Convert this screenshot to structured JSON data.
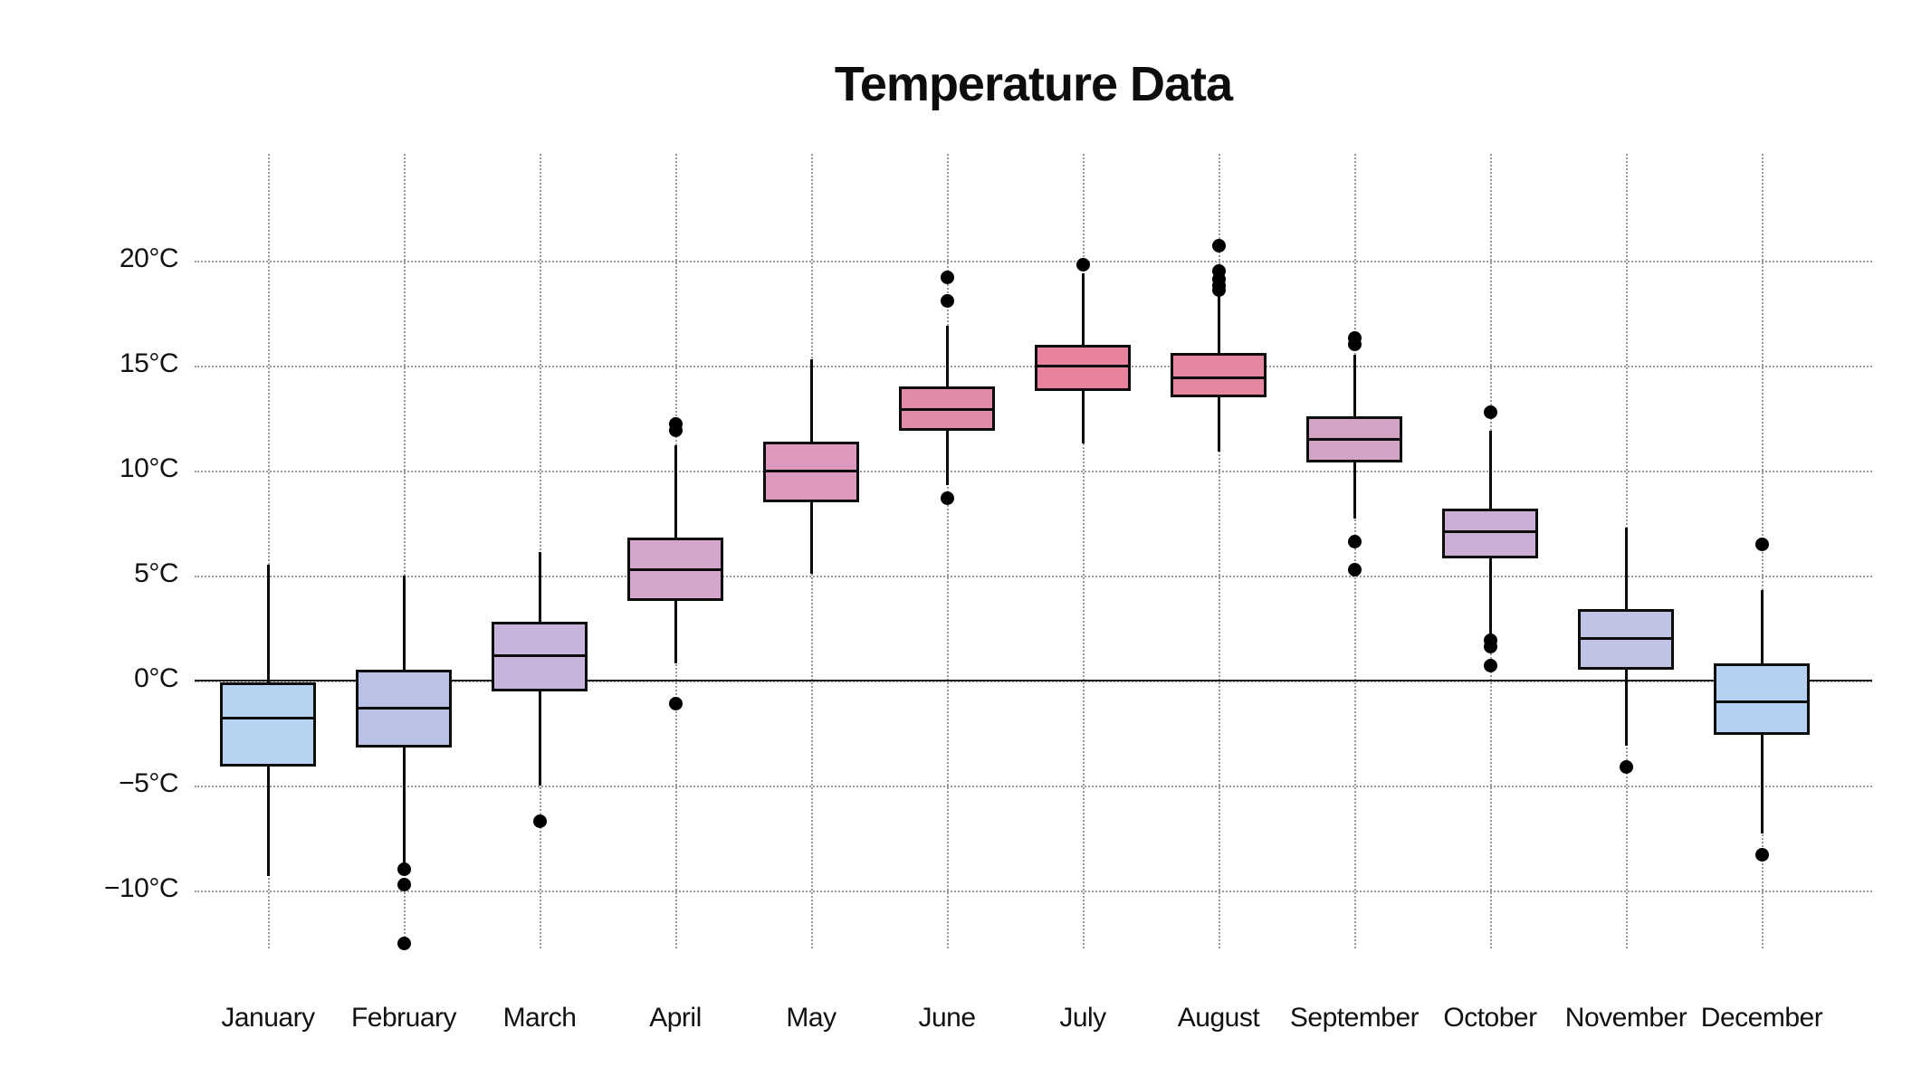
{
  "title": "Temperature Data",
  "chart_data": {
    "type": "boxplot",
    "title": "Temperature Data",
    "xlabel": "",
    "ylabel": "",
    "y_unit": "°C",
    "y_ticks": [
      20,
      15,
      10,
      5,
      0,
      -5,
      -10
    ],
    "y_tick_labels": [
      "20°C",
      "15°C",
      "10°C",
      "5°C",
      "0°C",
      "−5°C",
      "−10°C"
    ],
    "ylim": [
      -13.2,
      25.1
    ],
    "grid": "dotted gray, horizontal at ticks, vertical at categories",
    "zero_line": true,
    "legend_position": "none",
    "categories": [
      "January",
      "February",
      "March",
      "April",
      "May",
      "June",
      "July",
      "August",
      "September",
      "October",
      "November",
      "December"
    ],
    "boxes": [
      {
        "month": "January",
        "whisker_low": -9.3,
        "q1": -4.1,
        "median": -1.8,
        "q3": -0.1,
        "whisker_high": 5.5,
        "outliers": [],
        "color": "#b7d3f2"
      },
      {
        "month": "February",
        "whisker_low": -8.7,
        "q1": -3.2,
        "median": -1.3,
        "q3": 0.5,
        "whisker_high": 5.0,
        "outliers": [
          -9.0,
          -9.7,
          -12.5
        ],
        "color": "#b9c1e6"
      },
      {
        "month": "March",
        "whisker_low": -5.0,
        "q1": -0.5,
        "median": 1.2,
        "q3": 2.8,
        "whisker_high": 6.1,
        "outliers": [
          -6.7
        ],
        "color": "#c8b3da"
      },
      {
        "month": "April",
        "whisker_low": 0.8,
        "q1": 3.8,
        "median": 5.3,
        "q3": 6.8,
        "whisker_high": 11.2,
        "outliers": [
          12.2,
          11.9,
          -1.1
        ],
        "color": "#d5a6cc"
      },
      {
        "month": "May",
        "whisker_low": 5.1,
        "q1": 8.5,
        "median": 10.0,
        "q3": 11.4,
        "whisker_high": 15.3,
        "outliers": [],
        "color": "#dc98bd"
      },
      {
        "month": "June",
        "whisker_low": 9.3,
        "q1": 11.9,
        "median": 12.9,
        "q3": 14.0,
        "whisker_high": 16.9,
        "outliers": [
          19.2,
          18.1,
          8.7
        ],
        "color": "#e28ba8"
      },
      {
        "month": "July",
        "whisker_low": 11.3,
        "q1": 13.8,
        "median": 15.0,
        "q3": 16.0,
        "whisker_high": 19.4,
        "outliers": [
          19.8
        ],
        "color": "#e8829d"
      },
      {
        "month": "August",
        "whisker_low": 10.9,
        "q1": 13.5,
        "median": 14.4,
        "q3": 15.6,
        "whisker_high": 18.3,
        "outliers": [
          20.7,
          19.5,
          19.1,
          18.8,
          18.6
        ],
        "color": "#e4869f"
      },
      {
        "month": "September",
        "whisker_low": 7.7,
        "q1": 10.4,
        "median": 11.5,
        "q3": 12.6,
        "whisker_high": 15.5,
        "outliers": [
          16.3,
          16.0,
          6.6,
          5.3
        ],
        "color": "#d3a3c3"
      },
      {
        "month": "October",
        "whisker_low": 2.1,
        "q1": 5.8,
        "median": 7.1,
        "q3": 8.2,
        "whisker_high": 11.9,
        "outliers": [
          12.8,
          1.9,
          1.6,
          0.7
        ],
        "color": "#ccafd4"
      },
      {
        "month": "November",
        "whisker_low": -3.1,
        "q1": 0.5,
        "median": 2.0,
        "q3": 3.4,
        "whisker_high": 7.3,
        "outliers": [
          -4.1
        ],
        "color": "#bfc3e5"
      },
      {
        "month": "December",
        "whisker_low": -7.3,
        "q1": -2.6,
        "median": -1.0,
        "q3": 0.8,
        "whisker_high": 4.3,
        "outliers": [
          6.5,
          -8.3
        ],
        "color": "#b4d1f1"
      }
    ]
  }
}
